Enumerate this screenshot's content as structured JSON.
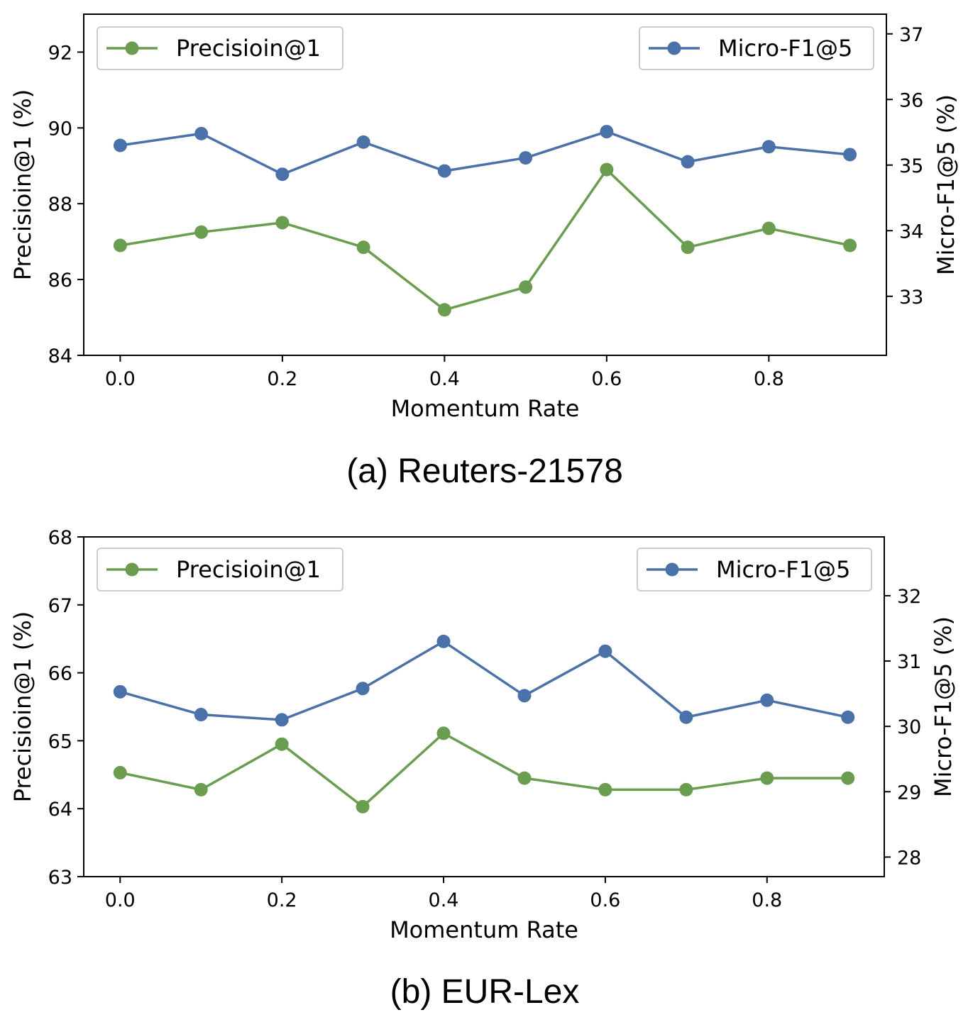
{
  "chart_data": [
    {
      "type": "line",
      "caption": "(a) Reuters-21578",
      "xlabel": "Momentum Rate",
      "ylabel_left": "Precisioin@1 (%)",
      "ylabel_right": "Micro-F1@5 (%)",
      "x": [
        0.0,
        0.1,
        0.2,
        0.3,
        0.4,
        0.5,
        0.6,
        0.7,
        0.8,
        0.9
      ],
      "xlim": [
        -0.045,
        0.945
      ],
      "xticks": [
        0.0,
        0.2,
        0.4,
        0.6,
        0.8
      ],
      "xtick_labels": [
        "0.0",
        "0.2",
        "0.4",
        "0.6",
        "0.8"
      ],
      "ylim_left": [
        84,
        93
      ],
      "yticks_left": [
        84,
        86,
        88,
        90,
        92
      ],
      "ytick_labels_left": [
        "84",
        "86",
        "88",
        "90",
        "92"
      ],
      "ylim_right": [
        32.1,
        37.3
      ],
      "yticks_right": [
        33,
        34,
        35,
        36,
        37
      ],
      "ytick_labels_right": [
        "33",
        "34",
        "35",
        "36",
        "37"
      ],
      "series": [
        {
          "name": "Precisioin@1",
          "axis": "left",
          "color": "#6a9d4f",
          "values": [
            86.9,
            87.25,
            87.5,
            86.85,
            85.2,
            85.8,
            88.9,
            86.85,
            87.35,
            86.9
          ],
          "legend_position": "top-left"
        },
        {
          "name": "Micro-F1@5",
          "axis": "right",
          "color": "#4a72a9",
          "values": [
            35.3,
            35.48,
            34.86,
            35.35,
            34.91,
            35.11,
            35.51,
            35.05,
            35.28,
            35.16
          ],
          "legend_position": "top-right"
        }
      ],
      "grid": false
    },
    {
      "type": "line",
      "caption": "(b) EUR-Lex",
      "xlabel": "Momentum Rate",
      "ylabel_left": "Precisioin@1 (%)",
      "ylabel_right": "Micro-F1@5 (%)",
      "x": [
        0.0,
        0.1,
        0.2,
        0.3,
        0.4,
        0.5,
        0.6,
        0.7,
        0.8,
        0.9
      ],
      "xlim": [
        -0.045,
        0.945
      ],
      "xticks": [
        0.0,
        0.2,
        0.4,
        0.6,
        0.8
      ],
      "xtick_labels": [
        "0.0",
        "0.2",
        "0.4",
        "0.6",
        "0.8"
      ],
      "ylim_left": [
        63,
        68
      ],
      "yticks_left": [
        63,
        64,
        65,
        66,
        67,
        68
      ],
      "ytick_labels_left": [
        "63",
        "64",
        "65",
        "66",
        "67",
        "68"
      ],
      "ylim_right": [
        27.7,
        32.9
      ],
      "yticks_right": [
        28,
        29,
        30,
        31,
        32
      ],
      "ytick_labels_right": [
        "28",
        "29",
        "30",
        "31",
        "32"
      ],
      "series": [
        {
          "name": "Precisioin@1",
          "axis": "left",
          "color": "#6a9d4f",
          "values": [
            64.53,
            64.28,
            64.95,
            64.03,
            65.11,
            64.45,
            64.28,
            64.28,
            64.45,
            64.45
          ],
          "legend_position": "top-left"
        },
        {
          "name": "Micro-F1@5",
          "axis": "right",
          "color": "#4a72a9",
          "values": [
            30.53,
            30.18,
            30.1,
            30.58,
            31.3,
            30.47,
            31.15,
            30.14,
            30.4,
            30.14
          ],
          "legend_position": "top-right"
        }
      ],
      "grid": false
    }
  ]
}
